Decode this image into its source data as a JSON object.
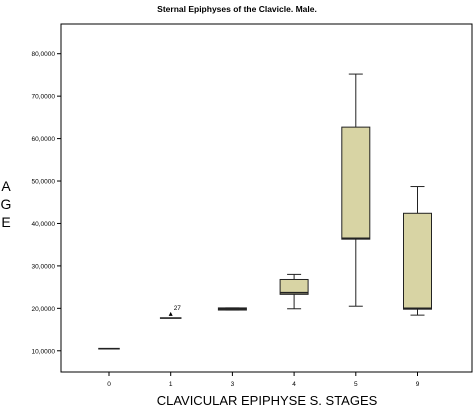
{
  "chart_data": {
    "type": "box",
    "title": "Sternal Epiphyses of the Clavicle. Male.",
    "xlabel": "CLAVICULAR EPIPHYSE S. STAGES",
    "ylabel": [
      "A",
      "G",
      "E"
    ],
    "ylim": [
      5000,
      87000
    ],
    "yticks": [
      10000,
      20000,
      30000,
      40000,
      50000,
      60000,
      70000,
      80000
    ],
    "ytick_labels": [
      "10,0000",
      "20,0000",
      "30,0000",
      "40,0000",
      "50,0000",
      "60,0000",
      "70,0000",
      "80,0000"
    ],
    "categories": [
      "0",
      "1",
      "3",
      "4",
      "5",
      "9"
    ],
    "boxes": [
      {
        "category": "0",
        "min": 10500,
        "q1": 10500,
        "median": 10500,
        "q3": 10500,
        "max": 10500
      },
      {
        "category": "1",
        "min": 17700,
        "q1": 17700,
        "median": 17700,
        "q3": 17700,
        "max": 17700
      },
      {
        "category": "3",
        "min": 19600,
        "q1": 19600,
        "median": 19900,
        "q3": 20100,
        "max": 20100
      },
      {
        "category": "4",
        "min": 19900,
        "q1": 23300,
        "median": 23700,
        "q3": 26800,
        "max": 28000
      },
      {
        "category": "5",
        "min": 20500,
        "q1": 36300,
        "median": 36500,
        "q3": 62700,
        "max": 75200
      },
      {
        "category": "9",
        "min": 18400,
        "q1": 19800,
        "median": 20000,
        "q3": 42400,
        "max": 48700
      }
    ],
    "outliers": [
      {
        "category": "1",
        "value": 18700,
        "label": "27"
      }
    ],
    "colors": {
      "box_fill": "#d8d4a4",
      "stroke": "#222222",
      "frame": "#000000"
    }
  }
}
